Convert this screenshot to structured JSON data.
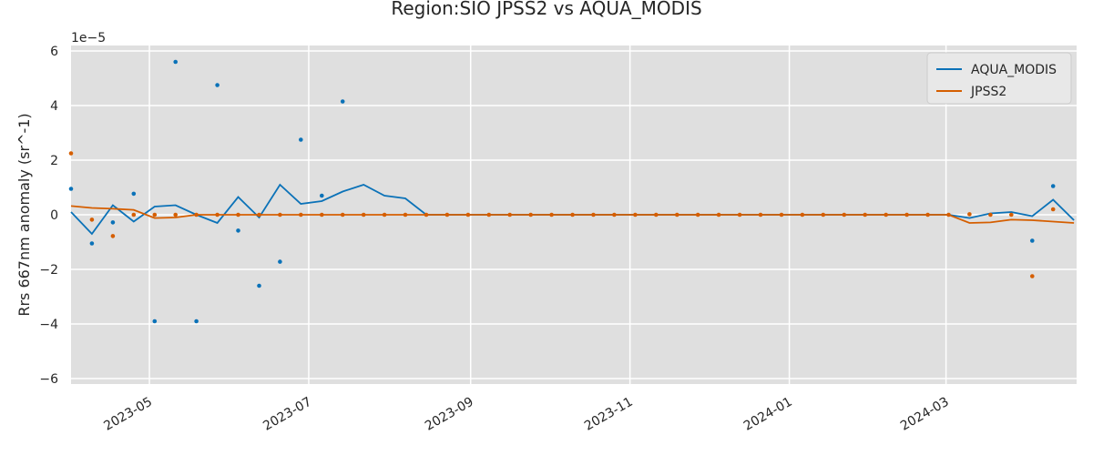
{
  "chart_data": {
    "type": "line",
    "title": "Region:SIO JPSS2 vs AQUA_MODIS",
    "xlabel": "",
    "ylabel": "Rrs 667nm anomaly (sr^-1)",
    "y_offset_label": "1e−5",
    "y_scale_exponent": -5,
    "xlim": [
      "2023-04-01",
      "2024-04-20"
    ],
    "ylim": [
      -6.2e-05,
      6.2e-05
    ],
    "x_ticks": [
      "2023-05-01",
      "2023-07-01",
      "2023-09-01",
      "2023-11-01",
      "2024-01-01",
      "2024-03-01"
    ],
    "x_tick_labels": [
      "2023-05",
      "2023-07",
      "2023-09",
      "2023-11",
      "2024-01",
      "2024-03"
    ],
    "y_ticks": [
      -6e-05,
      -4e-05,
      -2e-05,
      0,
      2e-05,
      4e-05,
      6e-05
    ],
    "y_tick_labels": [
      "−6",
      "−4",
      "−2",
      "0",
      "2",
      "4",
      "6"
    ],
    "grid": true,
    "legend_position": "top-right",
    "background_color": "#dfdfdf",
    "series": [
      {
        "name": "AQUA_MODIS",
        "color": "#0b72b8",
        "line": [
          [
            "2023-04-01",
            1e-06
          ],
          [
            "2023-04-09",
            -7e-06
          ],
          [
            "2023-04-17",
            3.5e-06
          ],
          [
            "2023-04-25",
            -2.5e-06
          ],
          [
            "2023-05-03",
            3e-06
          ],
          [
            "2023-05-11",
            3.5e-06
          ],
          [
            "2023-05-19",
            0.0
          ],
          [
            "2023-05-27",
            -3e-06
          ],
          [
            "2023-06-04",
            6.5e-06
          ],
          [
            "2023-06-12",
            -1e-06
          ],
          [
            "2023-06-20",
            1.1e-05
          ],
          [
            "2023-06-28",
            4e-06
          ],
          [
            "2023-07-06",
            5e-06
          ],
          [
            "2023-07-14",
            8.5e-06
          ],
          [
            "2023-07-22",
            1.1e-05
          ],
          [
            "2023-07-30",
            7e-06
          ],
          [
            "2023-08-07",
            6e-06
          ],
          [
            "2023-08-15",
            0.0
          ],
          [
            "2023-08-23",
            0
          ],
          [
            "2023-08-31",
            0
          ],
          [
            "2023-09-08",
            0
          ],
          [
            "2023-09-16",
            0
          ],
          [
            "2023-09-24",
            0
          ],
          [
            "2023-10-02",
            0
          ],
          [
            "2023-10-10",
            0
          ],
          [
            "2023-10-18",
            0
          ],
          [
            "2023-10-26",
            0
          ],
          [
            "2023-11-03",
            0
          ],
          [
            "2023-11-11",
            0
          ],
          [
            "2023-11-19",
            0
          ],
          [
            "2023-11-27",
            0
          ],
          [
            "2023-12-05",
            0
          ],
          [
            "2023-12-13",
            0
          ],
          [
            "2023-12-21",
            0
          ],
          [
            "2023-12-29",
            0
          ],
          [
            "2024-01-06",
            0
          ],
          [
            "2024-01-14",
            0
          ],
          [
            "2024-01-22",
            0
          ],
          [
            "2024-01-30",
            0
          ],
          [
            "2024-02-07",
            0
          ],
          [
            "2024-02-15",
            0
          ],
          [
            "2024-02-23",
            0
          ],
          [
            "2024-03-02",
            0.0
          ],
          [
            "2024-03-10",
            -1.2e-06
          ],
          [
            "2024-03-18",
            5e-07
          ],
          [
            "2024-03-26",
            1e-06
          ],
          [
            "2024-04-03",
            -5e-07
          ],
          [
            "2024-04-11",
            5.5e-06
          ],
          [
            "2024-04-19",
            -2e-06
          ]
        ],
        "points": [
          [
            "2023-04-01",
            9.5e-06
          ],
          [
            "2023-04-09",
            -1.05e-05
          ],
          [
            "2023-04-17",
            -2.8e-06
          ],
          [
            "2023-04-25",
            7.7e-06
          ],
          [
            "2023-05-03",
            -3.9e-05
          ],
          [
            "2023-05-11",
            5.6e-05
          ],
          [
            "2023-05-19",
            -3.9e-05
          ],
          [
            "2023-05-27",
            4.75e-05
          ],
          [
            "2023-06-04",
            -5.8e-06
          ],
          [
            "2023-06-12",
            -2.6e-05
          ],
          [
            "2023-06-20",
            -1.72e-05
          ],
          [
            "2023-06-28",
            2.75e-05
          ],
          [
            "2023-07-06",
            7e-06
          ],
          [
            "2023-07-14",
            4.15e-05
          ],
          [
            "2024-04-03",
            -9.5e-06
          ],
          [
            "2024-04-11",
            1.05e-05
          ]
        ]
      },
      {
        "name": "JPSS2",
        "color": "#d55e00",
        "line": [
          [
            "2023-04-01",
            3.2e-06
          ],
          [
            "2023-04-09",
            2.5e-06
          ],
          [
            "2023-04-17",
            2.2e-06
          ],
          [
            "2023-04-25",
            1.8e-06
          ],
          [
            "2023-05-03",
            -1.2e-06
          ],
          [
            "2023-05-11",
            -1e-06
          ],
          [
            "2023-05-19",
            0.0
          ],
          [
            "2023-05-27",
            0
          ],
          [
            "2023-06-04",
            0
          ],
          [
            "2023-06-12",
            0
          ],
          [
            "2023-06-20",
            0
          ],
          [
            "2023-06-28",
            0
          ],
          [
            "2023-07-06",
            0
          ],
          [
            "2023-07-14",
            0
          ],
          [
            "2023-07-22",
            0
          ],
          [
            "2023-07-30",
            0
          ],
          [
            "2023-08-07",
            0
          ],
          [
            "2023-08-15",
            0
          ],
          [
            "2023-08-23",
            0
          ],
          [
            "2023-08-31",
            0
          ],
          [
            "2023-09-08",
            0
          ],
          [
            "2023-09-16",
            0
          ],
          [
            "2023-09-24",
            0
          ],
          [
            "2023-10-02",
            0
          ],
          [
            "2023-10-10",
            0
          ],
          [
            "2023-10-18",
            0
          ],
          [
            "2023-10-26",
            0
          ],
          [
            "2023-11-03",
            0
          ],
          [
            "2023-11-11",
            0
          ],
          [
            "2023-11-19",
            0
          ],
          [
            "2023-11-27",
            0
          ],
          [
            "2023-12-05",
            0
          ],
          [
            "2023-12-13",
            0
          ],
          [
            "2023-12-21",
            0
          ],
          [
            "2023-12-29",
            0
          ],
          [
            "2024-01-06",
            0
          ],
          [
            "2024-01-14",
            0
          ],
          [
            "2024-01-22",
            0
          ],
          [
            "2024-01-30",
            0
          ],
          [
            "2024-02-07",
            0
          ],
          [
            "2024-02-15",
            0
          ],
          [
            "2024-02-23",
            0
          ],
          [
            "2024-03-02",
            0.0
          ],
          [
            "2024-03-10",
            -3e-06
          ],
          [
            "2024-03-18",
            -2.8e-06
          ],
          [
            "2024-03-26",
            -1.8e-06
          ],
          [
            "2024-04-03",
            -2e-06
          ],
          [
            "2024-04-11",
            -2.5e-06
          ],
          [
            "2024-04-19",
            -3e-06
          ]
        ],
        "points": [
          [
            "2023-04-01",
            2.25e-05
          ],
          [
            "2023-04-09",
            -1.8e-06
          ],
          [
            "2023-04-17",
            -7.8e-06
          ],
          [
            "2023-04-25",
            0
          ],
          [
            "2023-05-03",
            0
          ],
          [
            "2023-05-11",
            0
          ],
          [
            "2023-05-19",
            0
          ],
          [
            "2023-05-27",
            0
          ],
          [
            "2023-06-04",
            0
          ],
          [
            "2023-06-12",
            0
          ],
          [
            "2023-06-20",
            0
          ],
          [
            "2023-06-28",
            0
          ],
          [
            "2023-07-06",
            0
          ],
          [
            "2023-07-14",
            0
          ],
          [
            "2023-07-22",
            0
          ],
          [
            "2023-07-30",
            0
          ],
          [
            "2023-08-07",
            0
          ],
          [
            "2023-08-15",
            0
          ],
          [
            "2023-08-23",
            0
          ],
          [
            "2023-08-31",
            0
          ],
          [
            "2023-09-08",
            0
          ],
          [
            "2023-09-16",
            0
          ],
          [
            "2023-09-24",
            0
          ],
          [
            "2023-10-02",
            0
          ],
          [
            "2023-10-10",
            0
          ],
          [
            "2023-10-18",
            0
          ],
          [
            "2023-10-26",
            0
          ],
          [
            "2023-11-03",
            0
          ],
          [
            "2023-11-11",
            0
          ],
          [
            "2023-11-19",
            0
          ],
          [
            "2023-11-27",
            0
          ],
          [
            "2023-12-05",
            0
          ],
          [
            "2023-12-13",
            0
          ],
          [
            "2023-12-21",
            0
          ],
          [
            "2023-12-29",
            0
          ],
          [
            "2024-01-06",
            0
          ],
          [
            "2024-01-14",
            0
          ],
          [
            "2024-01-22",
            0
          ],
          [
            "2024-01-30",
            0
          ],
          [
            "2024-02-07",
            0
          ],
          [
            "2024-02-15",
            0
          ],
          [
            "2024-02-23",
            0
          ],
          [
            "2024-03-02",
            0
          ],
          [
            "2024-03-10",
            2e-07
          ],
          [
            "2024-03-18",
            0
          ],
          [
            "2024-03-26",
            0
          ],
          [
            "2024-04-03",
            -2.25e-05
          ],
          [
            "2024-04-11",
            2e-06
          ]
        ]
      }
    ]
  }
}
